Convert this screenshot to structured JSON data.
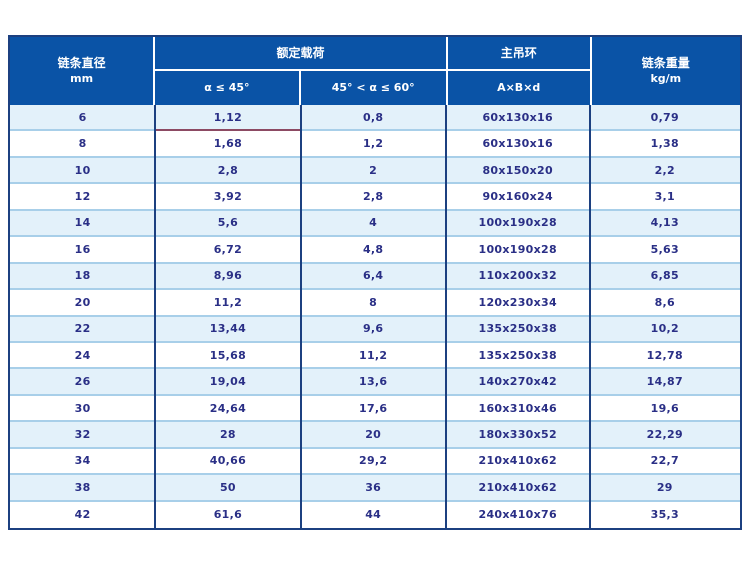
{
  "colors": {
    "header_bg": "#0a53a6",
    "header_text": "#ffffff",
    "border_navy": "#1c4080",
    "row_alt_bg": "#e3f1fa",
    "row_separator": "#a8cfe9",
    "body_text": "#2a2f86",
    "accent_underline": "#8c4a63"
  },
  "table": {
    "header": {
      "diameter_title": "链条直径",
      "diameter_unit": "mm",
      "load_group": "额定载荷",
      "load_sub1": "α ≤ 45°",
      "load_sub2": "45° < α ≤ 60°",
      "ring_group": "主吊环",
      "ring_sub": "A×B×d",
      "weight_title": "链条重量",
      "weight_unit": "kg/m"
    }
  },
  "chart_data": {
    "type": "table",
    "columns": [
      "链条直径 mm",
      "额定载荷 α ≤ 45°",
      "额定载荷 45° < α ≤ 60°",
      "主吊环 A×B×d",
      "链条重量 kg/m"
    ],
    "rows": [
      [
        "6",
        "1,12",
        "0,8",
        "60x130x16",
        "0,79"
      ],
      [
        "8",
        "1,68",
        "1,2",
        "60x130x16",
        "1,38"
      ],
      [
        "10",
        "2,8",
        "2",
        "80x150x20",
        "2,2"
      ],
      [
        "12",
        "3,92",
        "2,8",
        "90x160x24",
        "3,1"
      ],
      [
        "14",
        "5,6",
        "4",
        "100x190x28",
        "4,13"
      ],
      [
        "16",
        "6,72",
        "4,8",
        "100x190x28",
        "5,63"
      ],
      [
        "18",
        "8,96",
        "6,4",
        "110x200x32",
        "6,85"
      ],
      [
        "20",
        "11,2",
        "8",
        "120x230x34",
        "8,6"
      ],
      [
        "22",
        "13,44",
        "9,6",
        "135x250x38",
        "10,2"
      ],
      [
        "24",
        "15,68",
        "11,2",
        "135x250x38",
        "12,78"
      ],
      [
        "26",
        "19,04",
        "13,6",
        "140x270x42",
        "14,87"
      ],
      [
        "30",
        "24,64",
        "17,6",
        "160x310x46",
        "19,6"
      ],
      [
        "32",
        "28",
        "20",
        "180x330x52",
        "22,29"
      ],
      [
        "34",
        "40,66",
        "29,2",
        "210x410x62",
        "22,7"
      ],
      [
        "38",
        "50",
        "36",
        "210x410x62",
        "29"
      ],
      [
        "42",
        "61,6",
        "44",
        "240x410x76",
        "35,3"
      ]
    ]
  }
}
